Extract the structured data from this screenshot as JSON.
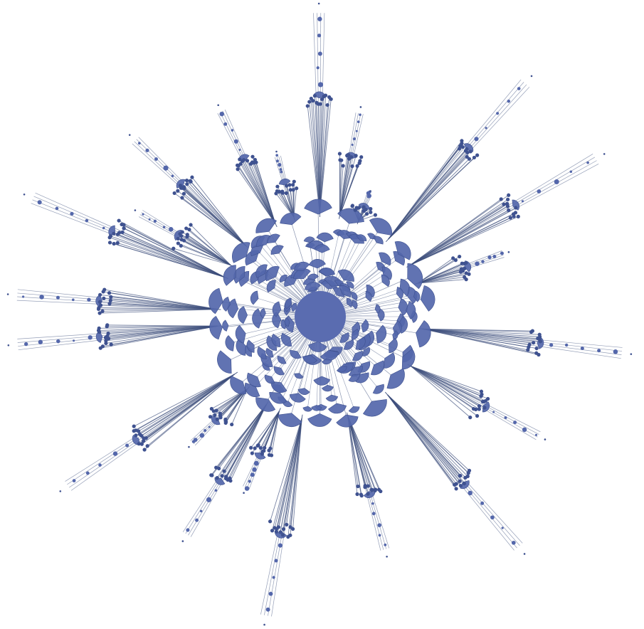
{
  "diagram": {
    "kind": "radial-tree-network",
    "title": "",
    "colors": {
      "background": "#ffffff",
      "node_fill": "#5467ab",
      "node_dark": "#3f5290",
      "edge_stroke": "#3d4f7c",
      "hub_fill": "#5a6cb0"
    },
    "hub_label": "",
    "node_text": []
  }
}
